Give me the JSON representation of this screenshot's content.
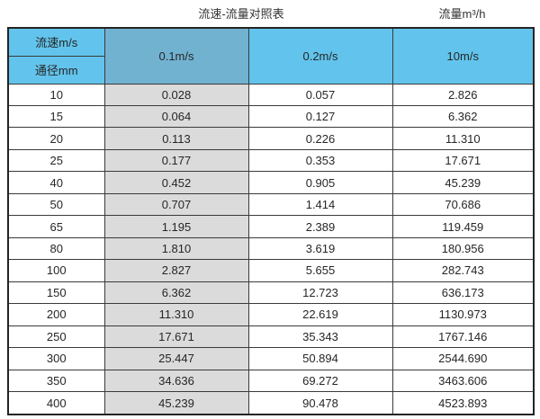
{
  "page": {
    "title": "流速-流量对照表",
    "unit_label": "流量m³/h"
  },
  "table": {
    "header": {
      "velocity_label": "流速m/s",
      "diameter_label": "通径mm",
      "columns": [
        "0.1m/s",
        "0.2m/s",
        "10m/s"
      ]
    },
    "rows": [
      [
        "10",
        "0.028",
        "0.057",
        "2.826"
      ],
      [
        "15",
        "0.064",
        "0.127",
        "6.362"
      ],
      [
        "20",
        "0.113",
        "0.226",
        "11.310"
      ],
      [
        "25",
        "0.177",
        "0.353",
        "17.671"
      ],
      [
        "40",
        "0.452",
        "0.905",
        "45.239"
      ],
      [
        "50",
        "0.707",
        "1.414",
        "70.686"
      ],
      [
        "65",
        "1.195",
        "2.389",
        "119.459"
      ],
      [
        "80",
        "1.810",
        "3.619",
        "180.956"
      ],
      [
        "100",
        "2.827",
        "5.655",
        "282.743"
      ],
      [
        "150",
        "6.362",
        "12.723",
        "636.173"
      ],
      [
        "200",
        "11.310",
        "22.619",
        "1130.973"
      ],
      [
        "250",
        "17.671",
        "35.343",
        "1767.146"
      ],
      [
        "300",
        "25.447",
        "50.894",
        "2544.690"
      ],
      [
        "350",
        "34.636",
        "69.272",
        "3463.606"
      ],
      [
        "400",
        "45.239",
        "90.478",
        "4523.893"
      ]
    ]
  },
  "colors": {
    "header_blue": "#62c4ec",
    "header_blue_dark": "#72b2d1",
    "col_gray": "#dbdbdb",
    "border": "#3a3a3a",
    "outer_border": "#242424",
    "text": "#262626"
  },
  "chart_data": {
    "type": "table",
    "title": "流速-流量对照表",
    "value_unit_label": "流量m³/h",
    "row_header": "通径mm",
    "column_header": "流速m/s",
    "categories": [
      10,
      15,
      20,
      25,
      40,
      50,
      65,
      80,
      100,
      150,
      200,
      250,
      300,
      350,
      400
    ],
    "series": [
      {
        "name": "0.1m/s",
        "values": [
          0.028,
          0.064,
          0.113,
          0.177,
          0.452,
          0.707,
          1.195,
          1.81,
          2.827,
          6.362,
          11.31,
          17.671,
          25.447,
          34.636,
          45.239
        ]
      },
      {
        "name": "0.2m/s",
        "values": [
          0.057,
          0.127,
          0.226,
          0.353,
          0.905,
          1.414,
          2.389,
          3.619,
          5.655,
          12.723,
          22.619,
          35.343,
          50.894,
          69.272,
          90.478
        ]
      },
      {
        "name": "10m/s",
        "values": [
          2.826,
          6.362,
          11.31,
          17.671,
          45.239,
          70.686,
          119.459,
          180.956,
          282.743,
          636.173,
          1130.973,
          1767.146,
          2544.69,
          3463.606,
          4523.893
        ]
      }
    ]
  }
}
